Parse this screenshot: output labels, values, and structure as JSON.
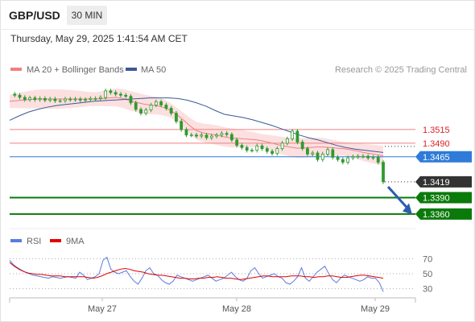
{
  "header": {
    "symbol": "GBP/USD",
    "timeframe": "30 MIN",
    "timestamp": "Thursday, May 29, 2025 1:41:54 AM CET"
  },
  "legend": {
    "ma20_bb": "MA 20 + Bollinger Bands",
    "ma50": "MA 50",
    "credit": "Research © 2025 Trading Central",
    "rsi": "RSI",
    "rsi_ma": "9MA"
  },
  "colors": {
    "ma20": "#f08080",
    "ma50": "#3b5998",
    "bands": "#fbd5d5",
    "candle": "#2e9b2e",
    "resistance": "#f08080",
    "pivot": "#2e7bd9",
    "support": "#0a7a0a",
    "current": "#333333",
    "arrow": "#2a5db0",
    "rsi": "#5b7be0",
    "rsi_ma": "#e00000"
  },
  "chart_data": [
    {
      "type": "line",
      "title": "GBP/USD",
      "subtitle": "30 MIN",
      "x_ticks": [
        "May 27",
        "May 28",
        "May 29"
      ],
      "ylim": [
        1.3342,
        1.3608
      ],
      "levels": [
        {
          "label": "1.3515",
          "value": 1.3515,
          "kind": "resistance"
        },
        {
          "label": "1.3490",
          "value": 1.349,
          "kind": "resistance"
        },
        {
          "label": "1.3465",
          "value": 1.3465,
          "kind": "pivot"
        },
        {
          "label": "1.3419",
          "value": 1.3419,
          "kind": "current"
        },
        {
          "label": "1.3390",
          "value": 1.339,
          "kind": "support"
        },
        {
          "label": "1.3360",
          "value": 1.336,
          "kind": "support"
        }
      ],
      "series": [
        {
          "name": "Price",
          "values": [
            1.358,
            1.3578,
            1.3574,
            1.357,
            1.3573,
            1.357,
            1.3572,
            1.3569,
            1.3571,
            1.3568,
            1.3568,
            1.3571,
            1.357,
            1.3571,
            1.3569,
            1.357,
            1.3572,
            1.3572,
            1.3574,
            1.3586,
            1.3583,
            1.358,
            1.3578,
            1.3576,
            1.3564,
            1.3552,
            1.3545,
            1.3551,
            1.356,
            1.3566,
            1.356,
            1.3554,
            1.3545,
            1.353,
            1.3515,
            1.3505,
            1.3505,
            1.3503,
            1.3505,
            1.35,
            1.3503,
            1.3505,
            1.3508,
            1.3506,
            1.3496,
            1.3486,
            1.3482,
            1.3477,
            1.3477,
            1.3485,
            1.348,
            1.3475,
            1.3471,
            1.348,
            1.349,
            1.3498,
            1.3512,
            1.3492,
            1.348,
            1.347,
            1.3472,
            1.346,
            1.347,
            1.3478,
            1.3464,
            1.346,
            1.3455,
            1.3463,
            1.3465,
            1.3466,
            1.3466,
            1.3463,
            1.3464,
            1.3455,
            1.3419
          ]
        },
        {
          "name": "MA 20",
          "values": [
            1.3567,
            1.3568,
            1.3569,
            1.357,
            1.3571,
            1.3571,
            1.3571,
            1.3571,
            1.3571,
            1.3571,
            1.3571,
            1.3571,
            1.3571,
            1.3571,
            1.3572,
            1.3573,
            1.3574,
            1.3572,
            1.3568,
            1.3565,
            1.3562,
            1.356,
            1.3559,
            1.3556,
            1.3551,
            1.3543,
            1.3533,
            1.3522,
            1.3513,
            1.3509,
            1.3507,
            1.3505,
            1.3502,
            1.35,
            1.3499,
            1.3498,
            1.3497,
            1.3496,
            1.3494,
            1.3491,
            1.3488,
            1.3485,
            1.3483,
            1.3481,
            1.3481,
            1.3482,
            1.3483,
            1.3483,
            1.3482,
            1.3481,
            1.348,
            1.3478,
            1.3476,
            1.3473,
            1.3471,
            1.3469,
            1.3467
          ]
        },
        {
          "name": "MA 50",
          "values": [
            1.3532,
            1.354,
            1.3547,
            1.3552,
            1.3556,
            1.3559,
            1.3561,
            1.3563,
            1.3565,
            1.3567,
            1.3568,
            1.3569,
            1.357,
            1.3571,
            1.3572,
            1.3573,
            1.3573,
            1.3573,
            1.3572,
            1.3569,
            1.3564,
            1.3558,
            1.355,
            1.3543,
            1.354,
            1.3537,
            1.3533,
            1.3528,
            1.3523,
            1.3517,
            1.3511,
            1.3505,
            1.35,
            1.3496,
            1.3491,
            1.3486,
            1.3482,
            1.3479,
            1.3477,
            1.3475,
            1.3473
          ]
        }
      ]
    },
    {
      "type": "line",
      "title": "RSI",
      "ylim": [
        22,
        78
      ],
      "y_ticks": [
        70,
        50,
        30
      ],
      "series": [
        {
          "name": "RSI",
          "values": [
            68,
            62,
            58,
            55,
            52,
            50,
            48,
            47,
            46,
            45,
            44,
            46,
            45,
            44,
            45,
            46,
            45,
            44,
            52,
            48,
            42,
            44,
            46,
            50,
            68,
            72,
            56,
            52,
            50,
            52,
            54,
            46,
            40,
            36,
            44,
            54,
            58,
            50,
            48,
            42,
            38,
            36,
            40,
            48,
            46,
            44,
            42,
            40,
            42,
            44,
            46,
            48,
            44,
            40,
            42,
            44,
            48,
            52,
            46,
            42,
            40,
            44,
            54,
            58,
            50,
            44,
            46,
            48,
            50,
            46,
            44,
            38,
            36,
            40,
            46,
            58,
            44,
            40,
            46,
            52,
            56,
            60,
            50,
            42,
            38,
            44,
            48,
            46,
            44,
            42,
            40,
            42,
            46,
            44,
            44,
            38,
            26
          ]
        },
        {
          "name": "9MA",
          "values": [
            65,
            60,
            56,
            53,
            51,
            50,
            49,
            49,
            48,
            47,
            47,
            47,
            46,
            46,
            46,
            46,
            46,
            45,
            44,
            45,
            47,
            50,
            52,
            54,
            56,
            57,
            56,
            54,
            53,
            52,
            50,
            49,
            48,
            48,
            47,
            46,
            45,
            44,
            44,
            43,
            43,
            44,
            44,
            45,
            45,
            46,
            45,
            44,
            44,
            43,
            42,
            43,
            44,
            45,
            46,
            47,
            47,
            46,
            46,
            46,
            46,
            47,
            47,
            47,
            46,
            46,
            45,
            46,
            46,
            47,
            47,
            46,
            45,
            45,
            46,
            47,
            48,
            48,
            47,
            46,
            45,
            44
          ]
        }
      ]
    }
  ]
}
